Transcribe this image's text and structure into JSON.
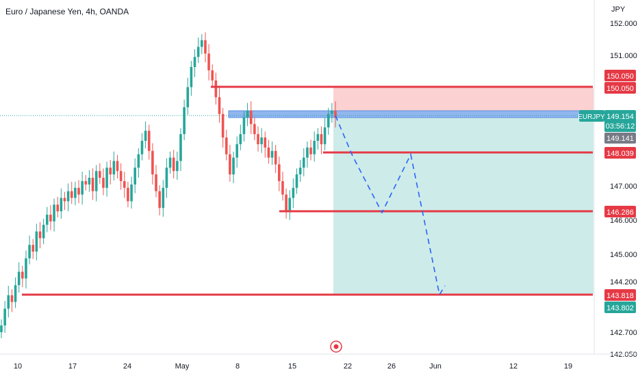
{
  "header": {
    "title": "Euro / Japanese Yen, 4h, OANDA"
  },
  "axis": {
    "currency": "JPY",
    "price_ticks": [
      "152.000",
      "151.000",
      "147.000",
      "146.000",
      "145.000",
      "144.200",
      "142.700",
      "142.050"
    ],
    "time_ticks": [
      "10",
      "17",
      "24",
      "May",
      "8",
      "15",
      "22",
      "26",
      "Jun",
      "12",
      "19"
    ]
  },
  "tags": {
    "tp_upper_1": "150.050",
    "tp_upper_2": "150.050",
    "symbol": "EURJPY",
    "last_price": "149.154",
    "countdown": "03:56:12",
    "bid": "149.141",
    "level_1": "148.039",
    "level_2": "146.286",
    "level_3": "143.818",
    "level_4": "143.802"
  },
  "colors": {
    "up": "#26a69a",
    "down": "#ef5350",
    "line_red": "#e53945",
    "zone_red": "#fbd1d1",
    "zone_green": "#cdebe8",
    "zone_blue": "#90b6ef",
    "path_blue": "#2962ff"
  },
  "chart_data": {
    "type": "candlestick",
    "symbol": "EURJPY",
    "timeframe": "4h",
    "y_range": [
      142.05,
      152.2
    ],
    "last_price": 149.154,
    "horizontal_levels": [
      150.05,
      148.039,
      146.286,
      143.818
    ],
    "trade_zone": {
      "entry": 149.15,
      "stop": 150.05,
      "target": 143.818
    },
    "projected_path": [
      149.15,
      147.9,
      146.22,
      148.04,
      146.0,
      143.818,
      143.95
    ],
    "close_series": [
      142.9,
      143.4,
      143.8,
      143.6,
      144.1,
      144.5,
      144.3,
      144.9,
      145.3,
      145.1,
      145.7,
      145.5,
      145.9,
      146.2,
      146.0,
      146.5,
      146.3,
      146.7,
      146.6,
      146.9,
      146.7,
      147.0,
      146.8,
      147.2,
      147.1,
      147.3,
      146.9,
      147.5,
      147.3,
      147.0,
      147.6,
      147.4,
      147.8,
      147.5,
      147.2,
      147.0,
      146.6,
      147.1,
      147.6,
      148.0,
      148.4,
      148.7,
      148.1,
      147.4,
      146.9,
      146.4,
      147.0,
      147.6,
      147.9,
      147.5,
      147.8,
      148.6,
      149.4,
      150.0,
      150.6,
      150.9,
      151.2,
      151.4,
      151.0,
      150.5,
      150.2,
      149.7,
      149.2,
      148.5,
      148.0,
      147.4,
      147.9,
      148.3,
      148.6,
      149.1,
      149.3,
      148.9,
      148.6,
      148.3,
      148.5,
      148.2,
      147.9,
      148.1,
      147.7,
      147.2,
      146.8,
      146.3,
      146.7,
      147.0,
      147.4,
      147.6,
      147.9,
      148.2,
      148.0,
      148.4,
      148.6,
      148.3,
      148.8,
      149.2,
      149.3,
      149.1
    ]
  }
}
